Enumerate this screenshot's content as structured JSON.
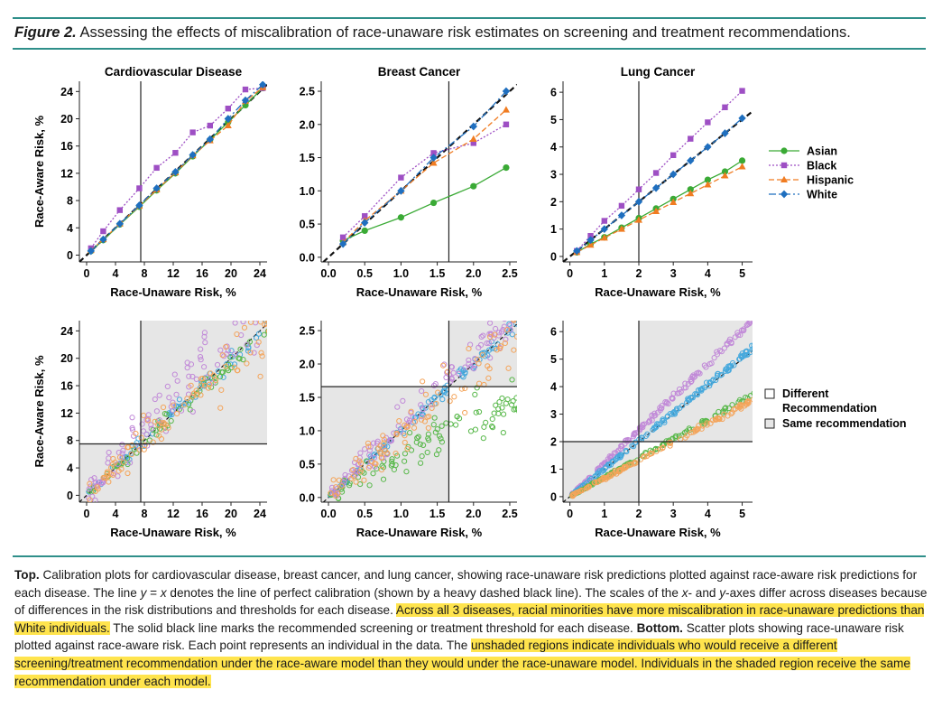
{
  "figure_label": "Figure 2.",
  "figure_title": "Assessing the effects of miscalibration of race-unaware risk estimates on screening and treatment recommendations.",
  "colors": {
    "rule": "#2f8f8a",
    "highlight": "#ffe44d",
    "shade": "#e6e6e6",
    "Asian": "#3aaa35",
    "Black": "#9e4fc4",
    "Hispanic": "#f07c22",
    "White": "#1f6fbf",
    "Black_scatter": "#c189d8",
    "White_scatter": "#46a9dd",
    "Asian_scatter": "#58b84a",
    "Hispanic_scatter": "#f4a45a"
  },
  "legend": {
    "lines": [
      {
        "name": "Asian",
        "marker": "circle",
        "style": "solid"
      },
      {
        "name": "Black",
        "marker": "square",
        "style": "dotted"
      },
      {
        "name": "Hispanic",
        "marker": "triangle",
        "style": "dashed"
      },
      {
        "name": "White",
        "marker": "diamond",
        "style": "dashdot"
      }
    ],
    "regions": {
      "different_line1": "Different",
      "different_line2": "Recommendation",
      "same": "Same recommendation"
    }
  },
  "chart_data": [
    {
      "type": "line",
      "panel": "top",
      "title": "Cardiovascular Disease",
      "xlabel": "Race-Unaware Risk, %",
      "ylabel": "Race-Aware Risk, %",
      "xlim": [
        -1,
        25
      ],
      "ylim": [
        -1,
        25.5
      ],
      "xticks": [
        0,
        4,
        8,
        12,
        16,
        20,
        24
      ],
      "yticks": [
        0,
        4,
        8,
        12,
        16,
        20,
        24
      ],
      "threshold": 7.5,
      "reference_line": "y = x",
      "series": [
        {
          "name": "Asian",
          "x": [
            0.6,
            2.3,
            4.6,
            7.3,
            9.7,
            12.3,
            14.7,
            17.1,
            19.6,
            22.0,
            24.4
          ],
          "y": [
            0.6,
            2.2,
            4.5,
            7.1,
            9.5,
            12.0,
            14.5,
            16.9,
            19.5,
            22.0,
            24.5
          ]
        },
        {
          "name": "Black",
          "x": [
            0.6,
            2.3,
            4.6,
            7.3,
            9.7,
            12.3,
            14.7,
            17.1,
            19.6,
            22.0,
            24.4
          ],
          "y": [
            1.0,
            3.5,
            6.6,
            9.8,
            12.8,
            15.0,
            18.0,
            19.0,
            21.5,
            24.3,
            24.5
          ]
        },
        {
          "name": "Hispanic",
          "x": [
            0.6,
            2.3,
            4.6,
            7.3,
            9.7,
            12.3,
            14.7,
            17.1,
            19.6,
            22.0,
            24.4
          ],
          "y": [
            0.7,
            2.3,
            4.6,
            7.2,
            9.6,
            12.1,
            14.6,
            16.8,
            19.0,
            22.6,
            24.6
          ]
        },
        {
          "name": "White",
          "x": [
            0.6,
            2.3,
            4.6,
            7.3,
            9.7,
            12.3,
            14.7,
            17.1,
            19.6,
            22.0,
            24.4
          ],
          "y": [
            0.6,
            2.3,
            4.6,
            7.3,
            9.8,
            12.2,
            14.7,
            17.0,
            20.0,
            22.7,
            25.0
          ]
        }
      ]
    },
    {
      "type": "line",
      "panel": "top",
      "title": "Breast Cancer",
      "xlabel": "Race-Unaware Risk, %",
      "ylabel": "",
      "xlim": [
        -0.1,
        2.6
      ],
      "ylim": [
        -0.07,
        2.65
      ],
      "xticks": [
        0.0,
        0.5,
        1.0,
        1.5,
        2.0,
        2.5
      ],
      "yticks": [
        0.0,
        0.5,
        1.0,
        1.5,
        2.0,
        2.5
      ],
      "threshold": 1.66,
      "reference_line": "y = x",
      "series": [
        {
          "name": "Asian",
          "x": [
            0.2,
            0.5,
            1.0,
            1.45,
            2.0,
            2.45
          ],
          "y": [
            0.25,
            0.4,
            0.6,
            0.82,
            1.07,
            1.35
          ]
        },
        {
          "name": "Black",
          "x": [
            0.2,
            0.5,
            1.0,
            1.45,
            2.0,
            2.45
          ],
          "y": [
            0.3,
            0.62,
            1.2,
            1.57,
            1.72,
            2.0
          ]
        },
        {
          "name": "Hispanic",
          "x": [
            0.2,
            0.5,
            1.0,
            1.45,
            2.0,
            2.45
          ],
          "y": [
            0.22,
            0.55,
            1.0,
            1.42,
            1.78,
            2.22
          ]
        },
        {
          "name": "White",
          "x": [
            0.2,
            0.5,
            1.0,
            1.45,
            2.0,
            2.45
          ],
          "y": [
            0.2,
            0.52,
            1.0,
            1.5,
            1.97,
            2.5
          ]
        }
      ]
    },
    {
      "type": "line",
      "panel": "top",
      "title": "Lung Cancer",
      "xlabel": "Race-Unaware Risk, %",
      "ylabel": "",
      "xlim": [
        -0.2,
        5.3
      ],
      "ylim": [
        -0.2,
        6.4
      ],
      "xticks": [
        0,
        1,
        2,
        3,
        4,
        5
      ],
      "yticks": [
        0,
        1,
        2,
        3,
        4,
        5,
        6
      ],
      "threshold": 2.0,
      "reference_line": "y = x",
      "series": [
        {
          "name": "Asian",
          "x": [
            0.2,
            0.6,
            1.0,
            1.5,
            2.0,
            2.5,
            3.0,
            3.5,
            4.0,
            4.5,
            5.0
          ],
          "y": [
            0.15,
            0.45,
            0.7,
            1.05,
            1.4,
            1.75,
            2.1,
            2.45,
            2.8,
            3.1,
            3.5
          ]
        },
        {
          "name": "Black",
          "x": [
            0.2,
            0.6,
            1.0,
            1.5,
            2.0,
            2.5,
            3.0,
            3.5,
            4.0,
            4.5,
            5.0
          ],
          "y": [
            0.2,
            0.75,
            1.3,
            1.85,
            2.45,
            3.05,
            3.7,
            4.3,
            4.9,
            5.45,
            6.05
          ]
        },
        {
          "name": "Hispanic",
          "x": [
            0.2,
            0.6,
            1.0,
            1.5,
            2.0,
            2.5,
            3.0,
            3.5,
            4.0,
            4.5,
            5.0
          ],
          "y": [
            0.15,
            0.42,
            0.68,
            1.0,
            1.33,
            1.65,
            1.98,
            2.3,
            2.62,
            2.95,
            3.28
          ]
        },
        {
          "name": "White",
          "x": [
            0.2,
            0.6,
            1.0,
            1.5,
            2.0,
            2.5,
            3.0,
            3.5,
            4.0,
            4.5,
            5.0
          ],
          "y": [
            0.2,
            0.6,
            1.0,
            1.5,
            2.0,
            2.5,
            3.0,
            3.5,
            4.0,
            4.5,
            5.05
          ]
        }
      ]
    },
    {
      "type": "scatter",
      "panel": "bottom",
      "title": "",
      "xlabel": "Race-Unaware Risk, %",
      "ylabel": "Race-Aware Risk, %",
      "xlim": [
        -1,
        25
      ],
      "ylim": [
        -1,
        25.5
      ],
      "xticks": [
        0,
        4,
        8,
        12,
        16,
        20,
        24
      ],
      "yticks": [
        0,
        4,
        8,
        12,
        16,
        20,
        24
      ],
      "threshold": 7.5,
      "groups": [
        {
          "name": "White",
          "slope": 1.0,
          "spread": 0.9,
          "points": 70
        },
        {
          "name": "Asian",
          "slope": 0.97,
          "spread": 0.9,
          "points": 60
        },
        {
          "name": "Black",
          "slope": 1.22,
          "spread": 3.4,
          "points": 110
        },
        {
          "name": "Hispanic",
          "slope": 0.99,
          "spread": 2.6,
          "points": 90
        }
      ]
    },
    {
      "type": "scatter",
      "panel": "bottom",
      "title": "",
      "xlabel": "Race-Unaware Risk, %",
      "ylabel": "",
      "xlim": [
        -0.1,
        2.6
      ],
      "ylim": [
        -0.07,
        2.65
      ],
      "xticks": [
        0.0,
        0.5,
        1.0,
        1.5,
        2.0,
        2.5
      ],
      "yticks": [
        0.0,
        0.5,
        1.0,
        1.5,
        2.0,
        2.5
      ],
      "threshold": 1.66,
      "groups": [
        {
          "name": "White",
          "slope": 1.0,
          "spread": 0.06,
          "points": 90
        },
        {
          "name": "Asian",
          "slope": 0.58,
          "spread": 0.22,
          "points": 100
        },
        {
          "name": "Black",
          "slope": 1.08,
          "spread": 0.22,
          "points": 110
        },
        {
          "name": "Hispanic",
          "slope": 0.97,
          "spread": 0.28,
          "points": 90
        }
      ]
    },
    {
      "type": "scatter",
      "panel": "bottom",
      "title": "",
      "xlabel": "Race-Unaware Risk, %",
      "ylabel": "",
      "xlim": [
        -0.2,
        5.3
      ],
      "ylim": [
        -0.2,
        6.4
      ],
      "xticks": [
        0,
        1,
        2,
        3,
        4,
        5
      ],
      "yticks": [
        0,
        1,
        2,
        3,
        4,
        5,
        6
      ],
      "threshold": 2.0,
      "groups": [
        {
          "name": "Black",
          "slope": 1.21,
          "spread": 0.07,
          "points": 150
        },
        {
          "name": "White",
          "slope": 1.02,
          "spread": 0.07,
          "points": 150
        },
        {
          "name": "Asian",
          "slope": 0.7,
          "spread": 0.05,
          "points": 120
        },
        {
          "name": "Hispanic",
          "slope": 0.66,
          "spread": 0.05,
          "points": 120
        }
      ]
    }
  ],
  "caption": {
    "top_label": "Top.",
    "text1": " Calibration plots for cardiovascular disease, breast cancer, and lung cancer, showing race-unaware risk predictions plotted against race-aware risk predictions for each disease. The line ",
    "eq_y": "y",
    "eq_mid": " = ",
    "eq_x": "x",
    "text2": " denotes the line of perfect calibration (shown by a heavy dashed black line). The scales of the ",
    "x_italic": "x",
    "text3": "- and ",
    "y_italic": "y",
    "text4": "-axes differ across diseases because of differences in the risk distributions and thresholds for each disease. ",
    "highlight1": "Across all 3 diseases, racial minorities have more miscalibration in race-unaware predictions than White individuals.",
    "text5": " The solid black line marks the recommended screening or treatment threshold for each disease. ",
    "bottom_label": "Bottom.",
    "text6": " Scatter plots showing race-unaware risk plotted against race-aware risk. Each point represents an individual in the data. The ",
    "highlight2": "unshaded regions indicate individuals who would receive a different screening/treatment recommendation under the race-aware model than they would under the race-unaware model. Individuals in the shaded region receive the same recommendation under each model."
  }
}
